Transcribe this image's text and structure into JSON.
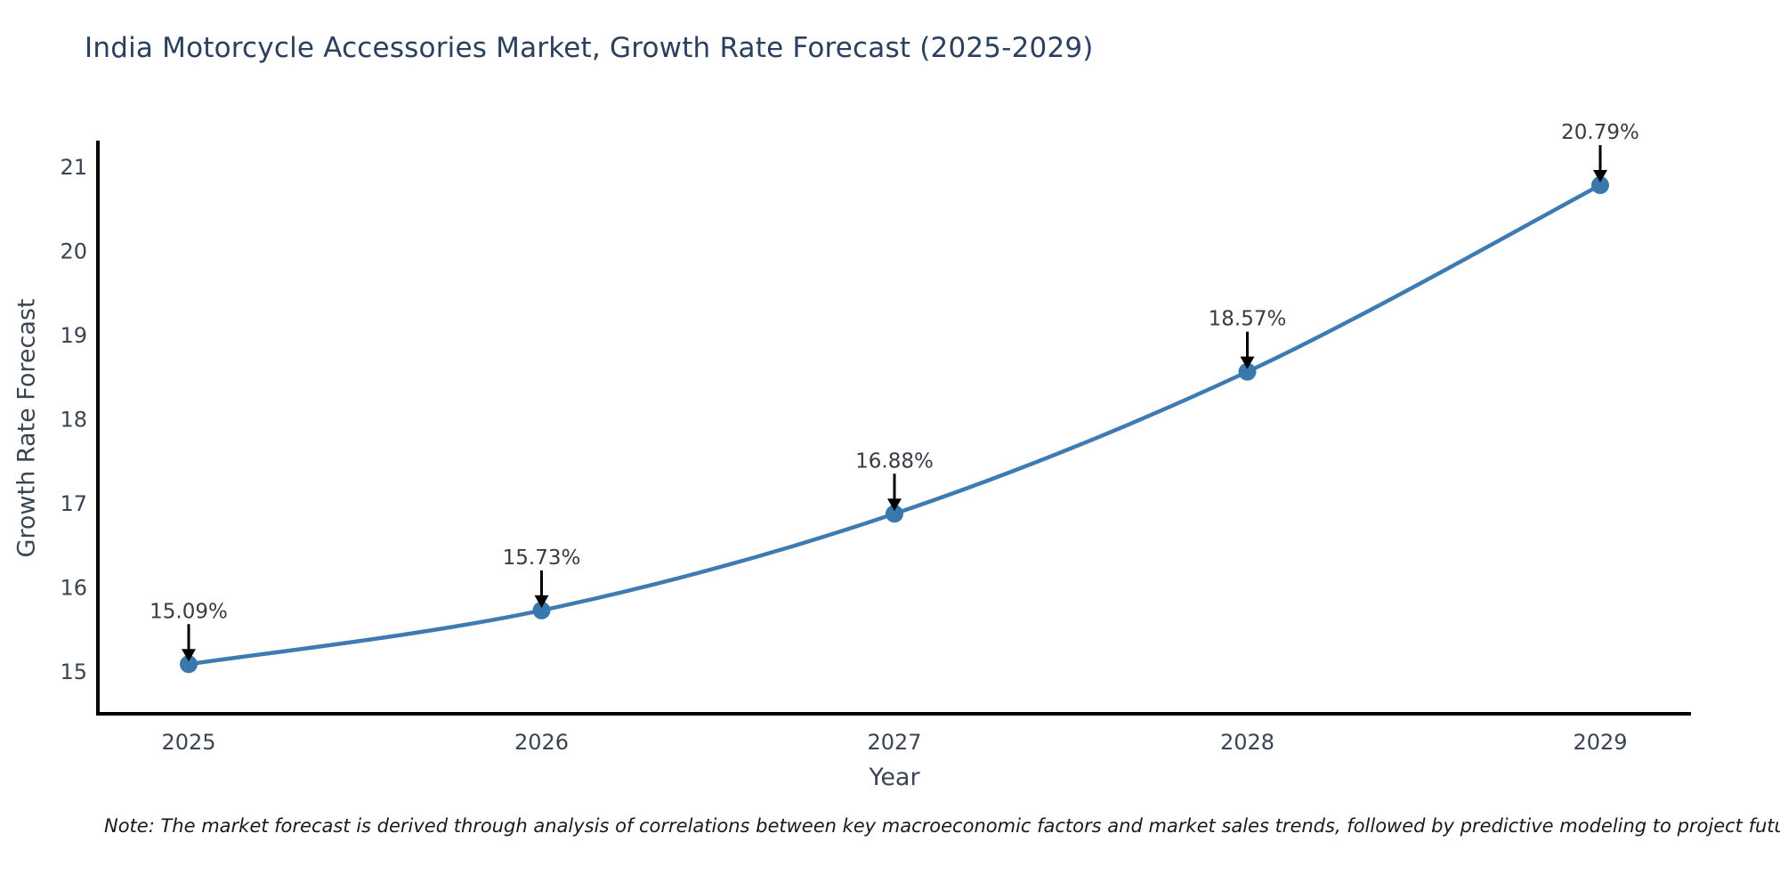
{
  "page": {
    "background_color": "#ffffff"
  },
  "chart_data": {
    "type": "line",
    "title": "India Motorcycle Accessories Market, Growth Rate Forecast (2025-2029)",
    "xlabel": "Year",
    "ylabel": "Growth Rate Forecast",
    "categories": [
      "2025",
      "2026",
      "2027",
      "2028",
      "2029"
    ],
    "series": [
      {
        "name": "Growth Rate Forecast",
        "values": [
          15.09,
          15.73,
          16.88,
          18.57,
          20.79
        ]
      }
    ],
    "point_labels": [
      "15.09%",
      "15.73%",
      "16.88%",
      "18.57%",
      "20.79%"
    ],
    "yticks": [
      15,
      16,
      17,
      18,
      19,
      20,
      21
    ],
    "ylim": [
      14.5,
      21.32
    ],
    "grid": false,
    "legend": "none",
    "line_color": "#3d7bb2",
    "marker_color": "#3878ad",
    "axis_color": "#000000",
    "arrow_color": "#000000",
    "title_color": "#2b3f5e",
    "tick_color": "#3b4452",
    "axis_label_color": "#3b4452",
    "annotation_color": "#363c45",
    "note_color": "#1a1a1a",
    "note": "Note: The market forecast is derived through analysis of correlations between key macroeconomic factors and market sales trends, followed by predictive modeling to project future sales"
  }
}
